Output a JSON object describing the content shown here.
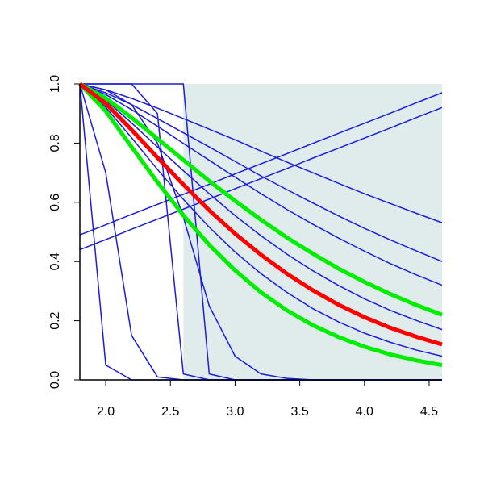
{
  "chart_data": {
    "type": "line",
    "x": [
      1.8,
      2.0,
      2.2,
      2.4,
      2.6,
      2.8,
      3.0,
      3.2,
      3.4,
      3.6,
      3.8,
      4.0,
      4.2,
      4.4,
      4.6
    ],
    "xlim": [
      1.8,
      4.6
    ],
    "ylim": [
      0,
      1
    ],
    "xticks": [
      {
        "value": 2.0,
        "label": "2.0"
      },
      2.5,
      {
        "value": 3.0,
        "label": "3.0"
      },
      3.5,
      {
        "value": 4.0,
        "label": "4.0"
      },
      4.5
    ],
    "yticks": [
      {
        "value": 0,
        "label": "0.0"
      },
      0.2,
      0.4,
      0.6,
      0.8,
      {
        "value": 1,
        "label": "1.0"
      }
    ],
    "shaded_region": {
      "x": [
        2.6,
        4.6
      ],
      "color": "#e0ecec"
    },
    "series": [
      {
        "color": "#1c1cdc",
        "width": 1.5,
        "values": [
          1,
          0.98,
          0.951,
          0.918,
          0.883,
          0.847,
          0.811,
          0.773,
          0.736,
          0.7,
          0.664,
          0.629,
          0.596,
          0.563,
          0.531
        ]
      },
      {
        "color": "#1c1cdc",
        "width": 1.5,
        "values": [
          1,
          0.97,
          0.93,
          0.883,
          0.835,
          0.787,
          0.738,
          0.689,
          0.643,
          0.598,
          0.554,
          0.512,
          0.473,
          0.436,
          0.4
        ]
      },
      {
        "color": "#1c1cdc",
        "width": 1.5,
        "values": [
          1,
          0.964,
          0.913,
          0.857,
          0.799,
          0.742,
          0.685,
          0.629,
          0.576,
          0.526,
          0.479,
          0.435,
          0.393,
          0.355,
          0.32
        ]
      },
      {
        "color": "#1c1cdc",
        "width": 1.5,
        "values": [
          1,
          0.945,
          0.868,
          0.787,
          0.707,
          0.629,
          0.555,
          0.487,
          0.425,
          0.369,
          0.319,
          0.274,
          0.235,
          0.201,
          0.17
        ]
      },
      {
        "color": "#1c1cdc",
        "width": 1.5,
        "values": [
          1,
          0.921,
          0.818,
          0.711,
          0.61,
          0.516,
          0.432,
          0.359,
          0.296,
          0.241,
          0.196,
          0.158,
          0.127,
          0.101,
          0.08
        ]
      },
      {
        "color": "#1c1cdc",
        "width": 1.5,
        "values": [
          1,
          0.05,
          0,
          0,
          0,
          0,
          0,
          0,
          0,
          0,
          0,
          0,
          0,
          0,
          0
        ]
      },
      {
        "color": "#1c1cdc",
        "width": 1.5,
        "values": [
          1,
          0.7,
          0.15,
          0.01,
          0,
          0,
          0,
          0,
          0,
          0,
          0,
          0,
          0,
          0,
          0
        ]
      },
      {
        "color": "#1c1cdc",
        "width": 1.5,
        "values": [
          1,
          1,
          1,
          0.9,
          0.02,
          0,
          0,
          0,
          0,
          0,
          0,
          0,
          0,
          0,
          0
        ]
      },
      {
        "color": "#1c1cdc",
        "width": 1.5,
        "values": [
          1,
          1,
          1,
          1,
          1,
          0.02,
          0,
          0,
          0,
          0,
          0,
          0,
          0,
          0,
          0
        ]
      },
      {
        "color": "#1c1cdc",
        "width": 1.5,
        "values": [
          1,
          0.98,
          0.93,
          0.8,
          0.55,
          0.25,
          0.08,
          0.02,
          0.005,
          0,
          0,
          0,
          0,
          0,
          0
        ]
      },
      {
        "color": "#1c1cdc",
        "width": 1.5,
        "values": [
          0.49,
          0.524,
          0.559,
          0.593,
          0.627,
          0.661,
          0.696,
          0.73,
          0.764,
          0.799,
          0.833,
          0.867,
          0.901,
          0.936,
          0.97
        ]
      },
      {
        "color": "#1c1cdc",
        "width": 1.5,
        "values": [
          0.44,
          0.474,
          0.509,
          0.543,
          0.577,
          0.611,
          0.646,
          0.68,
          0.714,
          0.749,
          0.783,
          0.817,
          0.851,
          0.886,
          0.92
        ]
      },
      {
        "color": "#00ee00",
        "width": 5,
        "values": [
          1,
          0.952,
          0.886,
          0.815,
          0.743,
          0.672,
          0.605,
          0.541,
          0.481,
          0.427,
          0.376,
          0.331,
          0.29,
          0.253,
          0.22
        ]
      },
      {
        "color": "#00ee00",
        "width": 5,
        "values": [
          1,
          0.908,
          0.787,
          0.668,
          0.556,
          0.456,
          0.37,
          0.296,
          0.235,
          0.185,
          0.145,
          0.112,
          0.086,
          0.066,
          0.05
        ]
      },
      {
        "color": "#ff0000",
        "width": 5,
        "values": [
          1,
          0.934,
          0.845,
          0.751,
          0.66,
          0.573,
          0.494,
          0.423,
          0.359,
          0.303,
          0.254,
          0.212,
          0.176,
          0.146,
          0.12
        ]
      }
    ]
  }
}
